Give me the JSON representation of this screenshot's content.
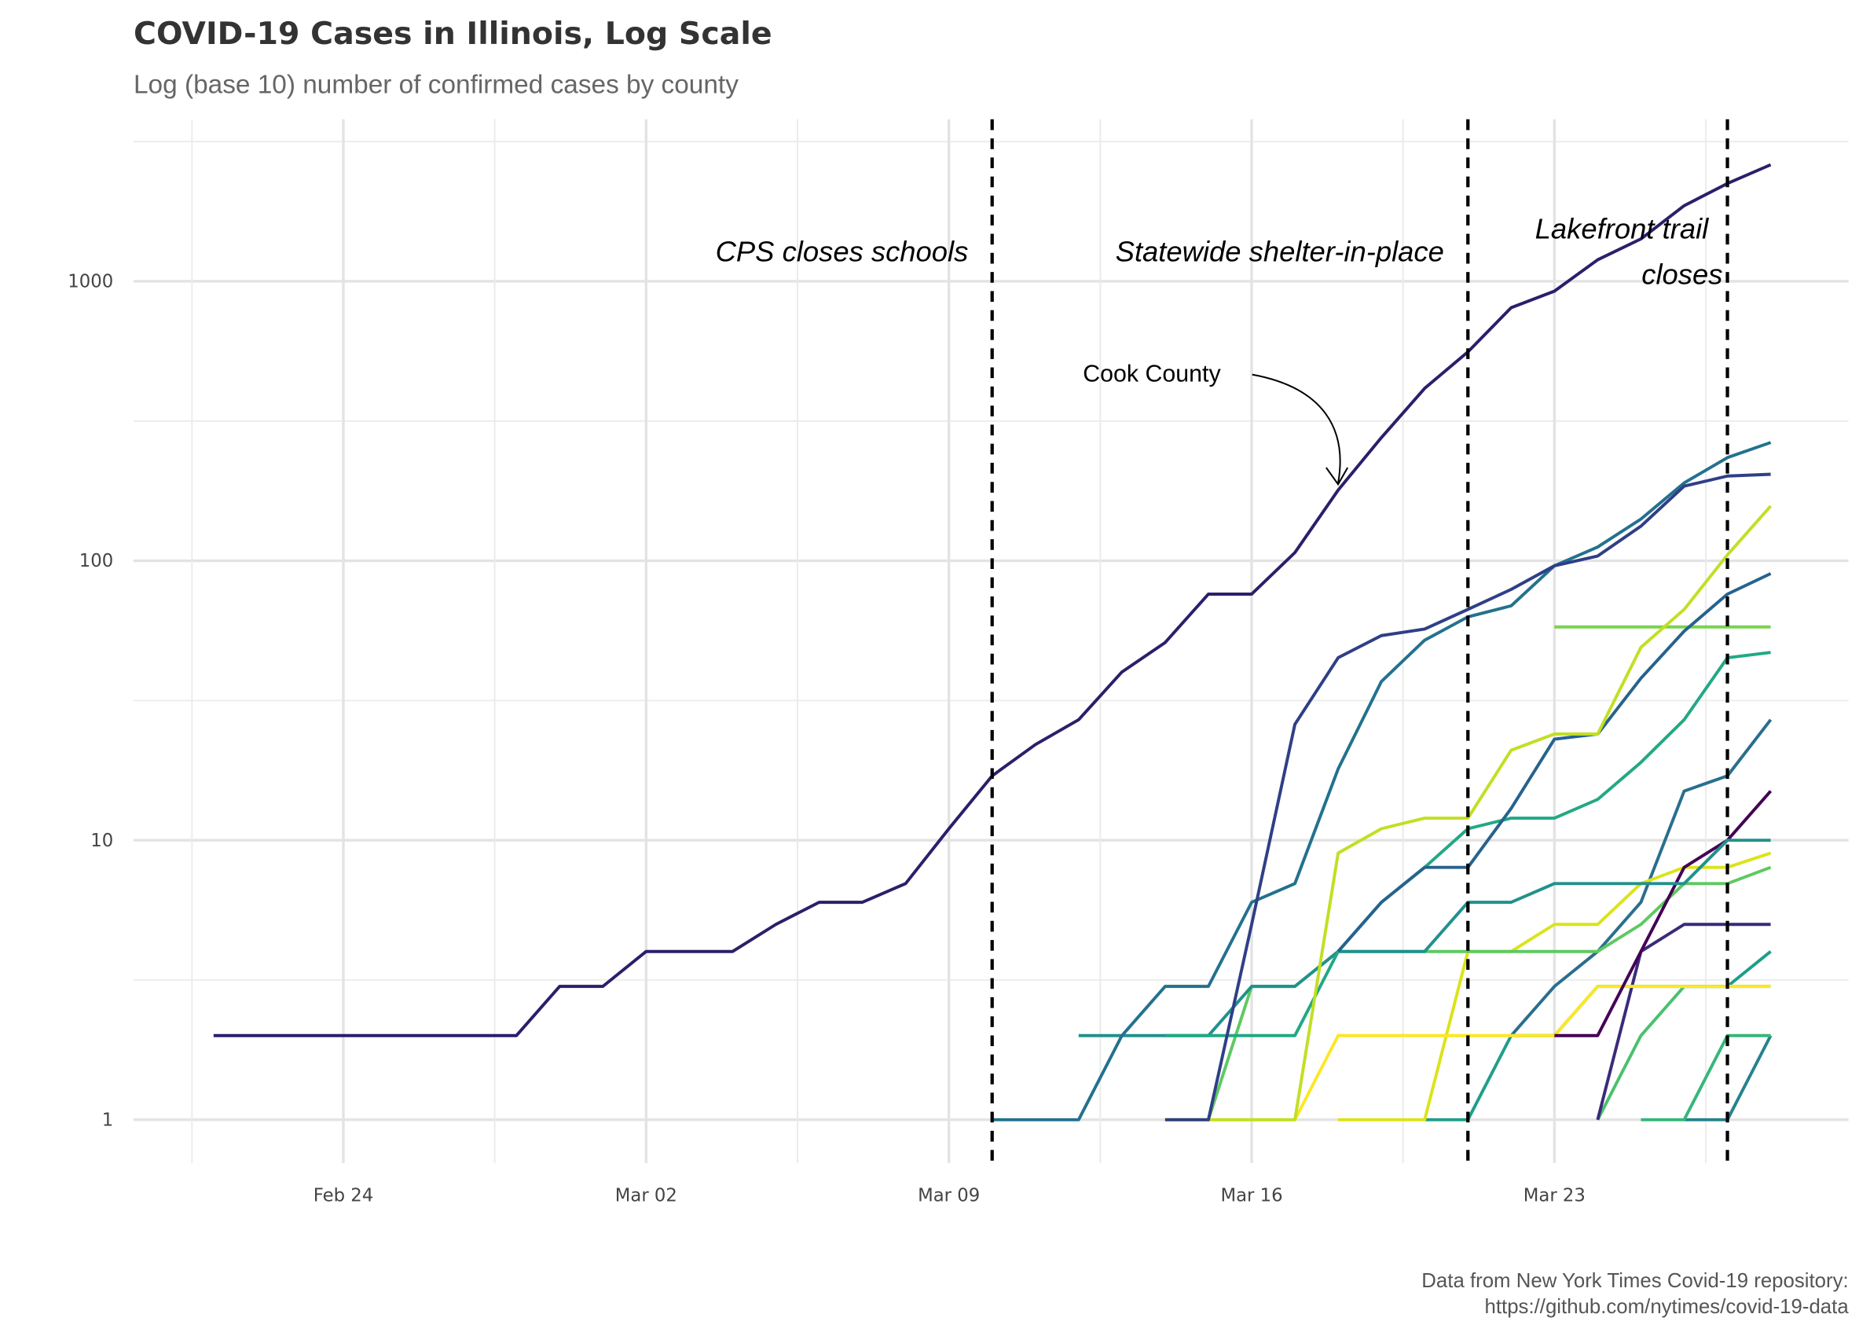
{
  "chart_data": {
    "type": "line",
    "title": "COVID-19 Cases in Illinois, Log Scale",
    "subtitle": "Log (base 10) number of confirmed cases by county",
    "caption": [
      "Data from New York Times Covid-19 repository:",
      "https://github.com/nytimes/covid-19-data"
    ],
    "x": [
      "Feb 21",
      "Feb 22",
      "Feb 23",
      "Feb 24",
      "Feb 25",
      "Feb 26",
      "Feb 27",
      "Feb 28",
      "Feb 29",
      "Mar 01",
      "Mar 02",
      "Mar 03",
      "Mar 04",
      "Mar 05",
      "Mar 06",
      "Mar 07",
      "Mar 08",
      "Mar 09",
      "Mar 10",
      "Mar 11",
      "Mar 12",
      "Mar 13",
      "Mar 14",
      "Mar 15",
      "Mar 16",
      "Mar 17",
      "Mar 18",
      "Mar 19",
      "Mar 20",
      "Mar 21",
      "Mar 22",
      "Mar 23",
      "Mar 24",
      "Mar 25",
      "Mar 26",
      "Mar 27",
      "Mar 28"
    ],
    "xticks": [
      "Feb 24",
      "Mar 02",
      "Mar 09",
      "Mar 16",
      "Mar 23"
    ],
    "ylim": [
      0.7,
      3800
    ],
    "yticks": [
      1,
      10,
      100,
      1000
    ],
    "log_scale": true,
    "grid": true,
    "vlines": [
      {
        "x": "Mar 10",
        "label": [
          "CPS closes schools"
        ]
      },
      {
        "x": "Mar 21",
        "label": [
          "Statewide shelter-in-place"
        ]
      },
      {
        "x": "Mar 27",
        "label": [
          "Lakefront trail",
          "closes"
        ]
      }
    ],
    "annotation": "Cook County",
    "series": [
      {
        "color": "#2d1e6a",
        "values": [
          2,
          2,
          2,
          2,
          2,
          2,
          2,
          2,
          3,
          3,
          4,
          4,
          4,
          5,
          6,
          6,
          7,
          11,
          17,
          22,
          27,
          40,
          51,
          76,
          76,
          107,
          179,
          276,
          414,
          559,
          805,
          922,
          1194,
          1418,
          1865,
          2239,
          2613
        ]
      },
      {
        "color": "#2f3f86",
        "values": [
          null,
          null,
          null,
          null,
          null,
          null,
          null,
          null,
          null,
          null,
          null,
          null,
          null,
          null,
          null,
          null,
          null,
          null,
          null,
          null,
          null,
          null,
          1,
          1,
          5,
          26,
          45,
          54,
          57,
          67,
          79,
          96,
          104,
          133,
          185,
          201,
          204
        ]
      },
      {
        "color": "#23718e",
        "values": [
          null,
          null,
          null,
          null,
          null,
          null,
          null,
          null,
          null,
          null,
          null,
          null,
          null,
          null,
          null,
          null,
          null,
          null,
          1,
          1,
          1,
          2,
          3,
          3,
          6,
          7,
          18,
          37,
          52,
          63,
          69,
          96,
          112,
          141,
          190,
          234,
          265
        ]
      },
      {
        "color": "#c2df23",
        "values": [
          null,
          null,
          null,
          null,
          null,
          null,
          null,
          null,
          null,
          null,
          null,
          null,
          null,
          null,
          null,
          null,
          null,
          null,
          null,
          null,
          null,
          null,
          1,
          1,
          1,
          1,
          9,
          11,
          12,
          12,
          21,
          24,
          24,
          49,
          67,
          105,
          157
        ]
      },
      {
        "color": "#26628e",
        "values": [
          null,
          null,
          null,
          null,
          null,
          null,
          null,
          null,
          null,
          null,
          null,
          null,
          null,
          null,
          null,
          null,
          null,
          null,
          null,
          null,
          null,
          null,
          null,
          null,
          null,
          null,
          4,
          6,
          8,
          8,
          13,
          23,
          24,
          38,
          56,
          76,
          90
        ]
      },
      {
        "color": "#7ad151",
        "values": [
          null,
          null,
          null,
          null,
          null,
          null,
          null,
          null,
          null,
          null,
          null,
          null,
          null,
          null,
          null,
          null,
          null,
          null,
          null,
          null,
          null,
          null,
          null,
          null,
          null,
          null,
          null,
          null,
          null,
          null,
          null,
          58,
          58,
          58,
          58,
          58,
          58
        ]
      },
      {
        "color": "#22a884",
        "values": [
          null,
          null,
          null,
          null,
          null,
          null,
          null,
          null,
          null,
          null,
          null,
          null,
          null,
          null,
          null,
          null,
          null,
          null,
          null,
          null,
          null,
          null,
          2,
          2,
          2,
          2,
          4,
          6,
          8,
          11,
          12,
          12,
          14,
          19,
          27,
          45,
          47
        ]
      },
      {
        "color": "#21918c",
        "values": [
          null,
          null,
          null,
          null,
          null,
          null,
          null,
          null,
          null,
          null,
          null,
          null,
          null,
          null,
          null,
          null,
          null,
          null,
          null,
          null,
          2,
          2,
          2,
          2,
          3,
          3,
          4,
          4,
          4,
          6,
          6,
          7,
          7,
          7,
          7,
          10,
          10
        ]
      },
      {
        "color": "#440154",
        "values": [
          null,
          null,
          null,
          null,
          null,
          null,
          null,
          null,
          null,
          null,
          null,
          null,
          null,
          null,
          null,
          null,
          null,
          null,
          null,
          null,
          null,
          null,
          null,
          null,
          null,
          null,
          null,
          null,
          null,
          null,
          null,
          2,
          2,
          4,
          8,
          10,
          15
        ]
      },
      {
        "color": "#fde725",
        "values": [
          null,
          null,
          null,
          null,
          null,
          null,
          null,
          null,
          null,
          null,
          null,
          null,
          null,
          null,
          null,
          null,
          null,
          null,
          null,
          null,
          null,
          null,
          1,
          1,
          1,
          1,
          2,
          2,
          2,
          2,
          2,
          2,
          3,
          3,
          3,
          3,
          3
        ]
      },
      {
        "color": "#5ec962",
        "values": [
          null,
          null,
          null,
          null,
          null,
          null,
          null,
          null,
          null,
          null,
          null,
          null,
          null,
          null,
          null,
          null,
          null,
          null,
          null,
          null,
          null,
          null,
          1,
          1,
          3,
          3,
          4,
          4,
          4,
          4,
          4,
          4,
          4,
          5,
          7,
          7,
          8
        ]
      },
      {
        "color": "#dce319",
        "values": [
          null,
          null,
          null,
          null,
          null,
          null,
          null,
          null,
          null,
          null,
          null,
          null,
          null,
          null,
          null,
          null,
          null,
          null,
          null,
          null,
          null,
          null,
          null,
          null,
          null,
          null,
          1,
          1,
          1,
          4,
          4,
          5,
          5,
          7,
          8,
          8,
          9
        ]
      },
      {
        "color": "#3b2a7a",
        "values": [
          null,
          null,
          null,
          null,
          null,
          null,
          null,
          null,
          null,
          null,
          null,
          null,
          null,
          null,
          null,
          null,
          null,
          null,
          null,
          null,
          null,
          null,
          null,
          null,
          null,
          null,
          null,
          null,
          null,
          null,
          null,
          null,
          1,
          4,
          5,
          5,
          5
        ]
      },
      {
        "color": "#1f9e89",
        "values": [
          null,
          null,
          null,
          null,
          null,
          null,
          null,
          null,
          null,
          null,
          null,
          null,
          null,
          null,
          null,
          null,
          null,
          null,
          null,
          null,
          null,
          null,
          null,
          null,
          null,
          null,
          null,
          null,
          1,
          1,
          2,
          2,
          3,
          3,
          3,
          3,
          4
        ]
      },
      {
        "color": "#4ac16d",
        "values": [
          null,
          null,
          null,
          null,
          null,
          null,
          null,
          null,
          null,
          null,
          null,
          null,
          null,
          null,
          null,
          null,
          null,
          null,
          null,
          null,
          null,
          null,
          null,
          null,
          null,
          null,
          null,
          null,
          null,
          null,
          null,
          null,
          1,
          2,
          3,
          3,
          3
        ]
      },
      {
        "color": "#35b779",
        "values": [
          null,
          null,
          null,
          null,
          null,
          null,
          null,
          null,
          null,
          null,
          null,
          null,
          null,
          null,
          null,
          null,
          null,
          null,
          null,
          null,
          null,
          null,
          null,
          null,
          null,
          null,
          null,
          null,
          null,
          null,
          null,
          null,
          null,
          1,
          1,
          2,
          2
        ]
      },
      {
        "color": "#26828e",
        "values": [
          null,
          null,
          null,
          null,
          null,
          null,
          null,
          null,
          null,
          null,
          null,
          null,
          null,
          null,
          null,
          null,
          null,
          null,
          null,
          null,
          null,
          null,
          null,
          null,
          null,
          null,
          null,
          null,
          null,
          null,
          null,
          null,
          null,
          null,
          1,
          1,
          2
        ]
      },
      {
        "color": "#2a6e8e",
        "values": [
          null,
          null,
          null,
          null,
          null,
          null,
          null,
          null,
          null,
          null,
          null,
          null,
          null,
          null,
          null,
          null,
          null,
          null,
          null,
          null,
          null,
          null,
          null,
          null,
          null,
          null,
          null,
          null,
          null,
          null,
          2,
          3,
          4,
          6,
          15,
          17,
          27
        ]
      }
    ]
  }
}
